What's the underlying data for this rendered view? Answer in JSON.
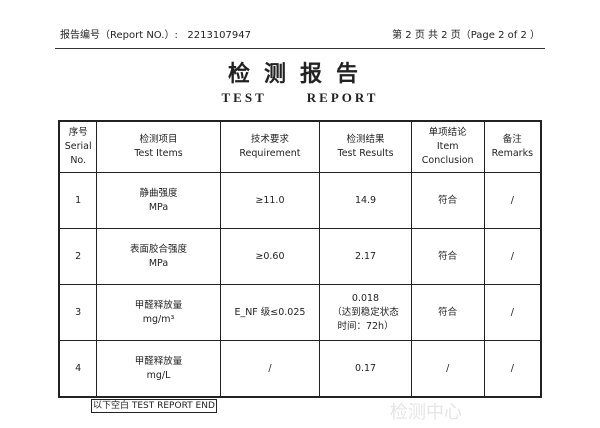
{
  "header": {
    "report_no_label": "报告编号（Report NO.）:",
    "report_no": "2213107947",
    "page_info": "第 2 页 共 2 页（Page 2 of 2 ）"
  },
  "title": {
    "cn": "检测报告",
    "en": "TEST REPORT"
  },
  "watermark": "国家化学建材检测中心",
  "table": {
    "headers": [
      [
        "序号",
        "Serial",
        "No."
      ],
      [
        "检测项目",
        "Test Items"
      ],
      [
        "技术要求",
        "Requirement"
      ],
      [
        "检测结果",
        "Test Results"
      ],
      [
        "单项结论",
        "Item",
        "Conclusion"
      ],
      [
        "备注",
        "Remarks"
      ]
    ],
    "rows": [
      {
        "no": "1",
        "item": "静曲强度",
        "unit": "MPa",
        "req": "≥11.0",
        "result": "14.9",
        "conclusion": "符合",
        "remarks": "/"
      },
      {
        "no": "2",
        "item": "表面胶合强度",
        "unit": "MPa",
        "req": "≥0.60",
        "result": "2.17",
        "conclusion": "符合",
        "remarks": "/"
      },
      {
        "no": "3",
        "item": "甲醛释放量",
        "unit": "mg/m³",
        "req": "E_NF 级≤0.025",
        "result": "0.018",
        "result_note1": "（达到稳定状态",
        "result_note2": "时间：72h）",
        "conclusion": "符合",
        "remarks": "/"
      },
      {
        "no": "4",
        "item": "甲醛释放量",
        "unit": "mg/L",
        "req": "/",
        "result": "0.17",
        "conclusion": "/",
        "remarks": "/"
      }
    ]
  },
  "footer": {
    "end_label": "以下空白 TEST REPORT END"
  }
}
